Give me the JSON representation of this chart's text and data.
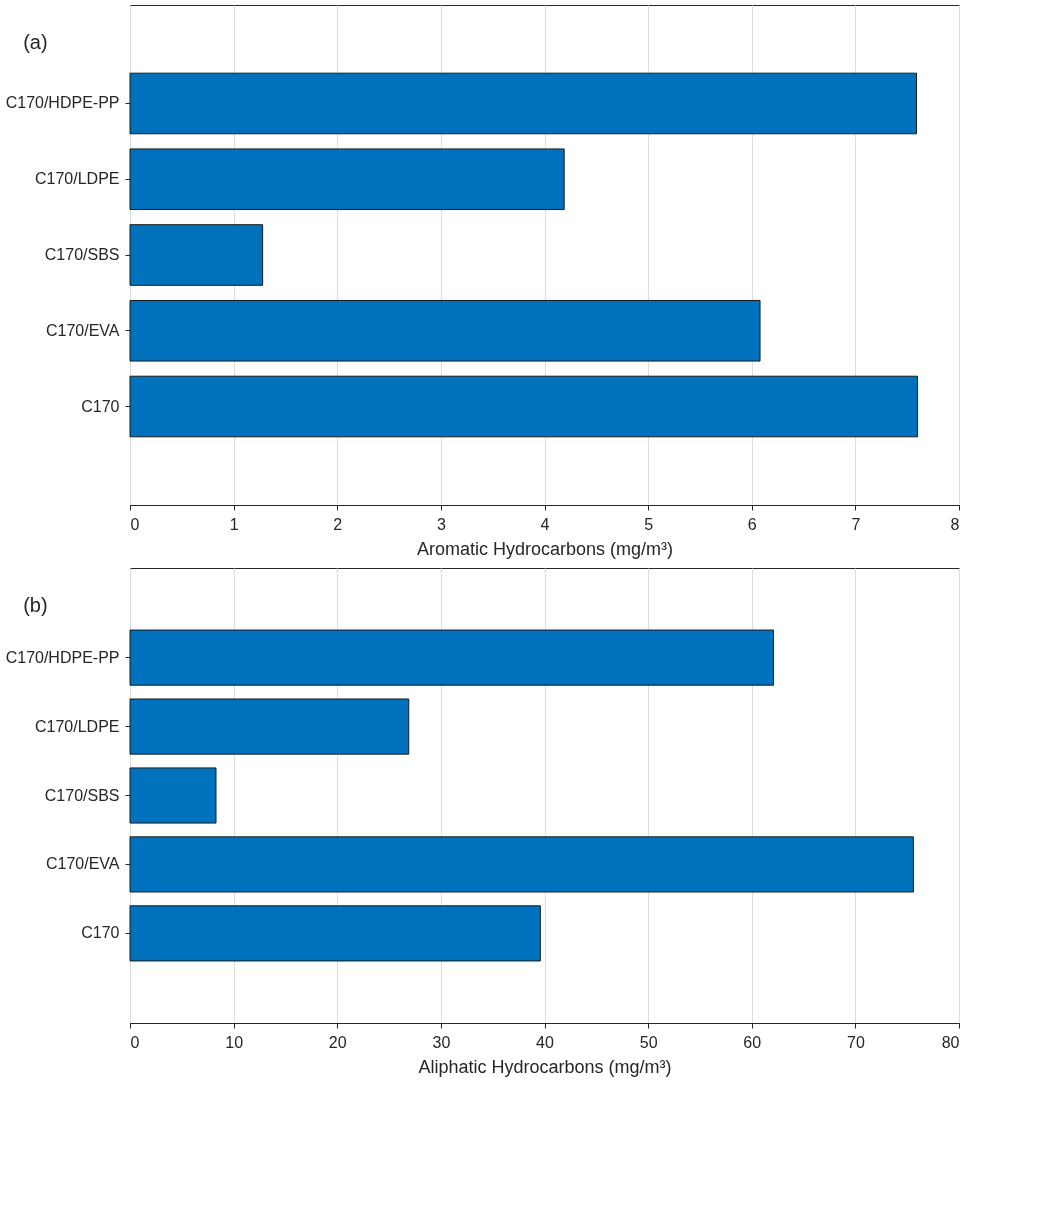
{
  "chart_data": [
    {
      "type": "bar",
      "orientation": "horizontal",
      "title": "(a)",
      "xlabel": "Aromatic Hydrocarbons (mg/m³)",
      "categories": [
        "C170/HDPE-PP",
        "C170/LDPE",
        "C170/SBS",
        "C170/EVA",
        "C170"
      ],
      "values": [
        7.59,
        4.19,
        1.28,
        6.08,
        7.6
      ],
      "color": "#0072bd",
      "xlim": [
        0,
        8
      ],
      "xticks": [
        0,
        1,
        2,
        3,
        4,
        5,
        6,
        7,
        8
      ],
      "grid": "x"
    },
    {
      "type": "bar",
      "orientation": "horizontal",
      "title": "(b)",
      "xlabel": "Aliphatic Hydrocarbons (mg/m³)",
      "categories": [
        "C170/HDPE-PP",
        "C170/LDPE",
        "C170/SBS",
        "C170/EVA",
        "C170"
      ],
      "values": [
        62.1,
        26.9,
        8.3,
        75.6,
        39.6
      ],
      "color": "#0072bd",
      "xlim": [
        0,
        80
      ],
      "xticks": [
        0,
        10,
        20,
        30,
        40,
        50,
        60,
        70,
        80
      ],
      "grid": "x"
    }
  ]
}
